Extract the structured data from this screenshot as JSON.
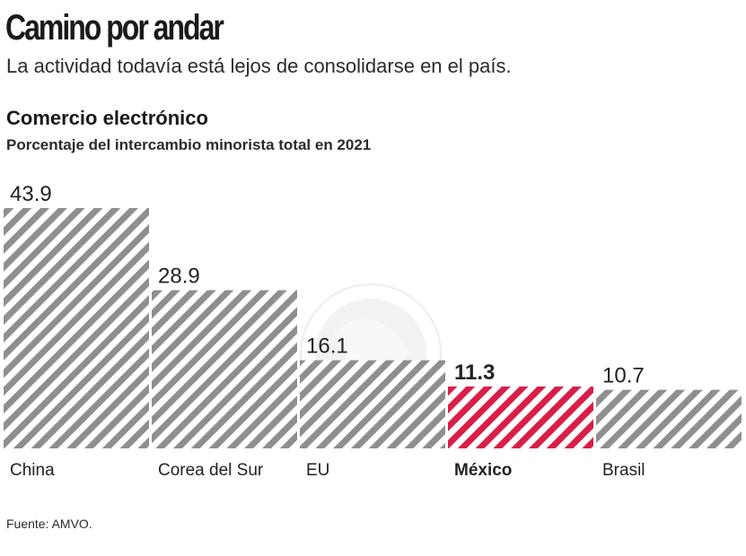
{
  "header": {
    "title": "Camino por andar",
    "subtitle": "La actividad todavía está lejos de consolidarse en el país."
  },
  "chart_data": {
    "type": "bar",
    "title": "Comercio electrónico",
    "subtitle": "Porcentaje del intercambio minorista total en 2021",
    "categories": [
      "China",
      "Corea del Sur",
      "EU",
      "México",
      "Brasil"
    ],
    "values": [
      43.9,
      28.9,
      16.1,
      11.3,
      10.7
    ],
    "value_labels": [
      "43.9",
      "28.9",
      "16.1",
      "11.3",
      "10.7"
    ],
    "highlight": "México",
    "xlabel": "",
    "ylabel": "",
    "ylim": [
      0,
      43.9
    ],
    "grid": false,
    "colors": {
      "default_stripe": "#8f8f8f",
      "highlight_stripe": "#d91e48",
      "background": "#ffffff"
    }
  },
  "footer": {
    "source": "Fuente: AMVO."
  }
}
